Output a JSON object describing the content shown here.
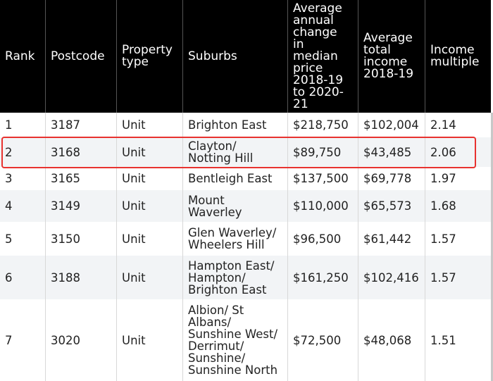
{
  "table": {
    "headers": [
      "Rank",
      "Postcode",
      "Property\ntype",
      "Suburbs",
      "Average\nannual\nchange\nin\nmedian\nprice\n2018-19\nto 2020-\n21",
      "Average\ntotal\nincome\n2018-19",
      "Income\nmultiple"
    ],
    "rows": [
      [
        "1",
        "3187",
        "Unit",
        "Brighton East",
        "$218,750",
        "$102,004",
        "2.14"
      ],
      [
        "2",
        "3168",
        "Unit",
        "Clayton/\nNotting Hill",
        "$89,750",
        "$43,485",
        "2.06"
      ],
      [
        "3",
        "3165",
        "Unit",
        "Bentleigh East",
        "$137,500",
        "$69,778",
        "1.97"
      ],
      [
        "4",
        "3149",
        "Unit",
        "Mount\nWaverley",
        "$110,000",
        "$65,573",
        "1.68"
      ],
      [
        "5",
        "3150",
        "Unit",
        "Glen Waverley/\nWheelers Hill",
        "$96,500",
        "$61,442",
        "1.57"
      ],
      [
        "6",
        "3188",
        "Unit",
        "Hampton East/\nHampton/\nBrighton East",
        "$161,250",
        "$102,416",
        "1.57"
      ],
      [
        "7",
        "3020",
        "Unit",
        "Albion/ St\nAlbans/\nSunshine West/\nDerrimut/\nSunshine/\nSunshine North",
        "$72,500",
        "$48,068",
        "1.51"
      ]
    ]
  },
  "colors": {
    "header_bg": "#000000",
    "header_text": "#ffffff",
    "shaded_row": "#f2f4f6",
    "highlight_border": "#e8322f"
  }
}
